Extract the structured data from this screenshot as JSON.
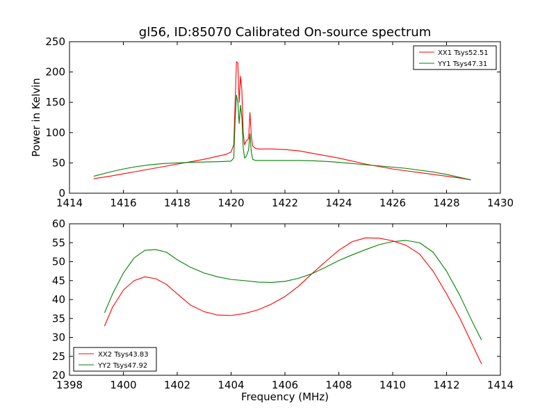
{
  "chart_data": [
    {
      "type": "line",
      "title": "gl56, ID:85070 Calibrated On-source spectrum",
      "xlabel": "",
      "ylabel": "Power in Kelvin",
      "xlim": [
        1414,
        1430
      ],
      "ylim": [
        0,
        250
      ],
      "xticks": [
        1414,
        1416,
        1418,
        1420,
        1422,
        1424,
        1426,
        1428,
        1430
      ],
      "yticks": [
        0,
        50,
        100,
        150,
        200,
        250
      ],
      "legend_position": "top-right",
      "grid": false,
      "series": [
        {
          "name": "XX1 Tsys52.51",
          "color": "#ff0000",
          "x": [
            1414.9,
            1415.5,
            1416,
            1416.5,
            1417,
            1417.5,
            1418,
            1418.5,
            1419,
            1419.5,
            1419.8,
            1420.0,
            1420.1,
            1420.15,
            1420.2,
            1420.25,
            1420.3,
            1420.35,
            1420.4,
            1420.45,
            1420.5,
            1420.55,
            1420.6,
            1420.65,
            1420.7,
            1420.75,
            1420.8,
            1420.9,
            1421.0,
            1421.5,
            1422,
            1422.5,
            1423,
            1423.5,
            1424,
            1424.5,
            1425,
            1425.5,
            1426,
            1426.5,
            1427,
            1427.5,
            1428,
            1428.5,
            1428.9
          ],
          "y": [
            24,
            28,
            32,
            36,
            40,
            44,
            48,
            52,
            56,
            61,
            64,
            68,
            80,
            150,
            217,
            215,
            150,
            193,
            170,
            100,
            80,
            85,
            88,
            90,
            133,
            95,
            78,
            74,
            73,
            73,
            72,
            70,
            66,
            62,
            58,
            53,
            48,
            44,
            40,
            37,
            34,
            31,
            28,
            25,
            22
          ]
        },
        {
          "name": "YY1 Tsys47.31",
          "color": "#008000",
          "x": [
            1414.9,
            1415.5,
            1416,
            1416.5,
            1417,
            1417.5,
            1418,
            1418.5,
            1419,
            1419.5,
            1419.8,
            1420.0,
            1420.1,
            1420.15,
            1420.2,
            1420.25,
            1420.3,
            1420.35,
            1420.4,
            1420.45,
            1420.5,
            1420.55,
            1420.6,
            1420.65,
            1420.7,
            1420.75,
            1420.8,
            1420.9,
            1421.0,
            1421.5,
            1422,
            1422.5,
            1423,
            1423.5,
            1424,
            1424.5,
            1425,
            1425.5,
            1426,
            1426.5,
            1427,
            1427.5,
            1428,
            1428.5,
            1428.9
          ],
          "y": [
            28,
            35,
            40,
            44,
            47,
            49,
            50,
            51,
            51.5,
            52,
            52.5,
            53,
            58,
            120,
            162,
            150,
            115,
            145,
            125,
            75,
            58,
            60,
            65,
            72,
            98,
            68,
            56,
            54,
            54,
            54,
            54,
            54,
            53.5,
            52.5,
            51,
            49,
            47,
            45,
            43,
            41,
            38,
            35,
            31,
            26,
            22
          ]
        }
      ]
    },
    {
      "type": "line",
      "title": "",
      "xlabel": "Frequency (MHz)",
      "ylabel": "",
      "xlim": [
        1398,
        1414
      ],
      "ylim": [
        20,
        60
      ],
      "xticks": [
        1398,
        1400,
        1402,
        1404,
        1406,
        1408,
        1410,
        1412,
        1414
      ],
      "yticks": [
        20,
        25,
        30,
        35,
        40,
        45,
        50,
        55,
        60
      ],
      "legend_position": "bottom-left",
      "grid": false,
      "series": [
        {
          "name": "XX2 Tsys43.83",
          "color": "#ff0000",
          "x": [
            1399.3,
            1399.6,
            1400,
            1400.4,
            1400.8,
            1401.2,
            1401.6,
            1402,
            1402.5,
            1403,
            1403.5,
            1404,
            1404.5,
            1405,
            1405.5,
            1406,
            1406.5,
            1407,
            1407.5,
            1408,
            1408.5,
            1409,
            1409.5,
            1410,
            1410.5,
            1411,
            1411.5,
            1412,
            1412.5,
            1413,
            1413.3
          ],
          "y": [
            33,
            38,
            42.5,
            45,
            46,
            45.5,
            44,
            41.5,
            38.5,
            36.8,
            35.9,
            35.8,
            36.3,
            37.3,
            38.8,
            40.8,
            43.5,
            46.8,
            50,
            53,
            55.3,
            56.3,
            56.2,
            55.5,
            54.3,
            52,
            47.5,
            41.5,
            35,
            27.5,
            23
          ]
        },
        {
          "name": "YY2 Tsys47.92",
          "color": "#008000",
          "x": [
            1399.3,
            1399.6,
            1400,
            1400.4,
            1400.8,
            1401.2,
            1401.6,
            1402,
            1402.5,
            1403,
            1403.5,
            1404,
            1404.5,
            1405,
            1405.5,
            1406,
            1406.5,
            1407,
            1407.5,
            1408,
            1408.5,
            1409,
            1409.5,
            1410,
            1410.5,
            1411,
            1411.5,
            1412,
            1412.5,
            1413,
            1413.3
          ],
          "y": [
            36.5,
            41.5,
            47,
            51,
            53,
            53.2,
            52.5,
            50.5,
            48.5,
            47,
            46,
            45.3,
            45,
            44.6,
            44.5,
            44.8,
            45.6,
            46.8,
            48.5,
            50.3,
            51.8,
            53.2,
            54.5,
            55.3,
            55.6,
            55,
            52.5,
            47.5,
            41,
            33.5,
            29.3
          ]
        }
      ]
    }
  ]
}
